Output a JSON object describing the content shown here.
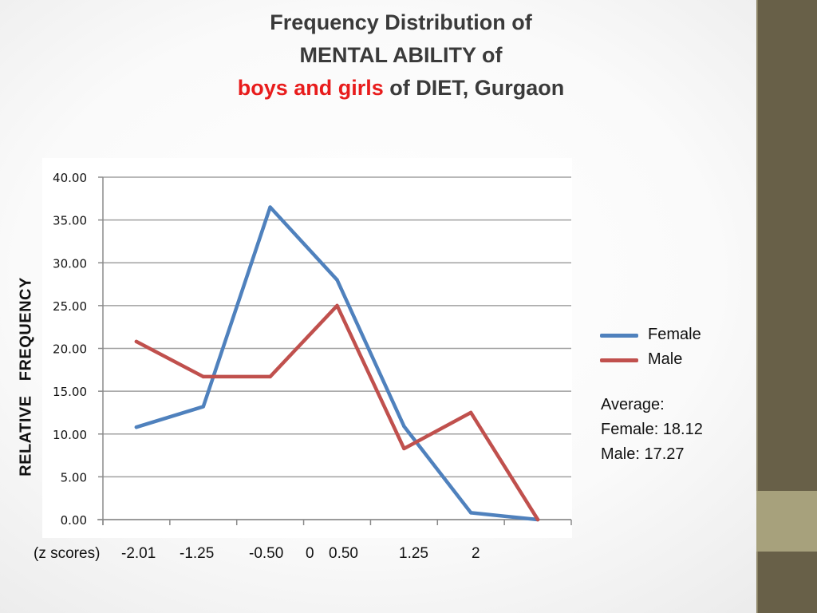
{
  "slide": {
    "title_line1": "Frequency Distribution of",
    "title_line2": "MENTAL ABILITY of",
    "title_line3_highlight": "boys and girls",
    "title_line3_rest": " of DIET, Gurgaon"
  },
  "colors": {
    "female": "#4f81bd",
    "male": "#c0504d",
    "highlight_text": "#e81c1c",
    "sidebar": "#686048",
    "sidebar_band": "#a7a17c",
    "gridline": "#a0a0a0"
  },
  "chart_data": {
    "type": "line",
    "ylabel": "RELATIVE   FREQUENCY",
    "xlabel": "(z scores)",
    "x_tick_labels": [
      "-2.01",
      "-1.25",
      "-0.50",
      "0",
      "0.50",
      "1.25",
      "2"
    ],
    "y_ticks": [
      "0.00",
      "5.00",
      "10.00",
      "15.00",
      "20.00",
      "25.00",
      "30.00",
      "35.00",
      "40.00"
    ],
    "ylim": [
      0,
      40
    ],
    "grid": true,
    "legend_position": "right",
    "num_points": 7,
    "series": [
      {
        "name": "Female",
        "values": [
          10.8,
          13.2,
          36.5,
          28.0,
          10.9,
          0.8,
          0.0
        ]
      },
      {
        "name": "Male",
        "values": [
          20.8,
          16.7,
          16.7,
          25.0,
          8.3,
          12.5,
          0.0
        ]
      }
    ]
  },
  "annotation": {
    "heading": "Average:",
    "female": "Female: 18.12",
    "male": "Male: 17.27"
  }
}
